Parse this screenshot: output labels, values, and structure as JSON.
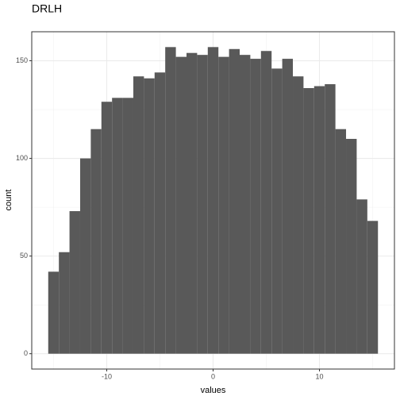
{
  "chart_data": {
    "type": "histogram",
    "title": "DRLH",
    "xlabel": "values",
    "ylabel": "count",
    "bins": [
      -15.5,
      -14.5,
      -13.5,
      -12.5,
      -11.5,
      -10.5,
      -9.5,
      -8.5,
      -7.5,
      -6.5,
      -5.5,
      -4.5,
      -3.5,
      -2.5,
      -1.5,
      -0.5,
      0.5,
      1.5,
      2.5,
      3.5,
      4.5,
      5.5,
      6.5,
      7.5,
      8.5,
      9.5,
      10.5,
      11.5,
      12.5,
      13.5,
      14.5,
      15.5
    ],
    "values": [
      42,
      52,
      73,
      100,
      115,
      129,
      131,
      131,
      142,
      141,
      144,
      157,
      152,
      154,
      153,
      157,
      152,
      156,
      153,
      151,
      155,
      146,
      151,
      142,
      136,
      137,
      138,
      115,
      110,
      79,
      68
    ],
    "color": "#595959",
    "xlim": [
      -17.05,
      17.05
    ],
    "xticks": [
      -10,
      0,
      10
    ],
    "xminor": [
      -15,
      -5,
      5,
      15
    ],
    "ylim": [
      -7.85,
      164.85
    ],
    "yticks": [
      0,
      50,
      100,
      150
    ],
    "yminor": [
      25,
      75,
      125
    ],
    "grid": true
  }
}
